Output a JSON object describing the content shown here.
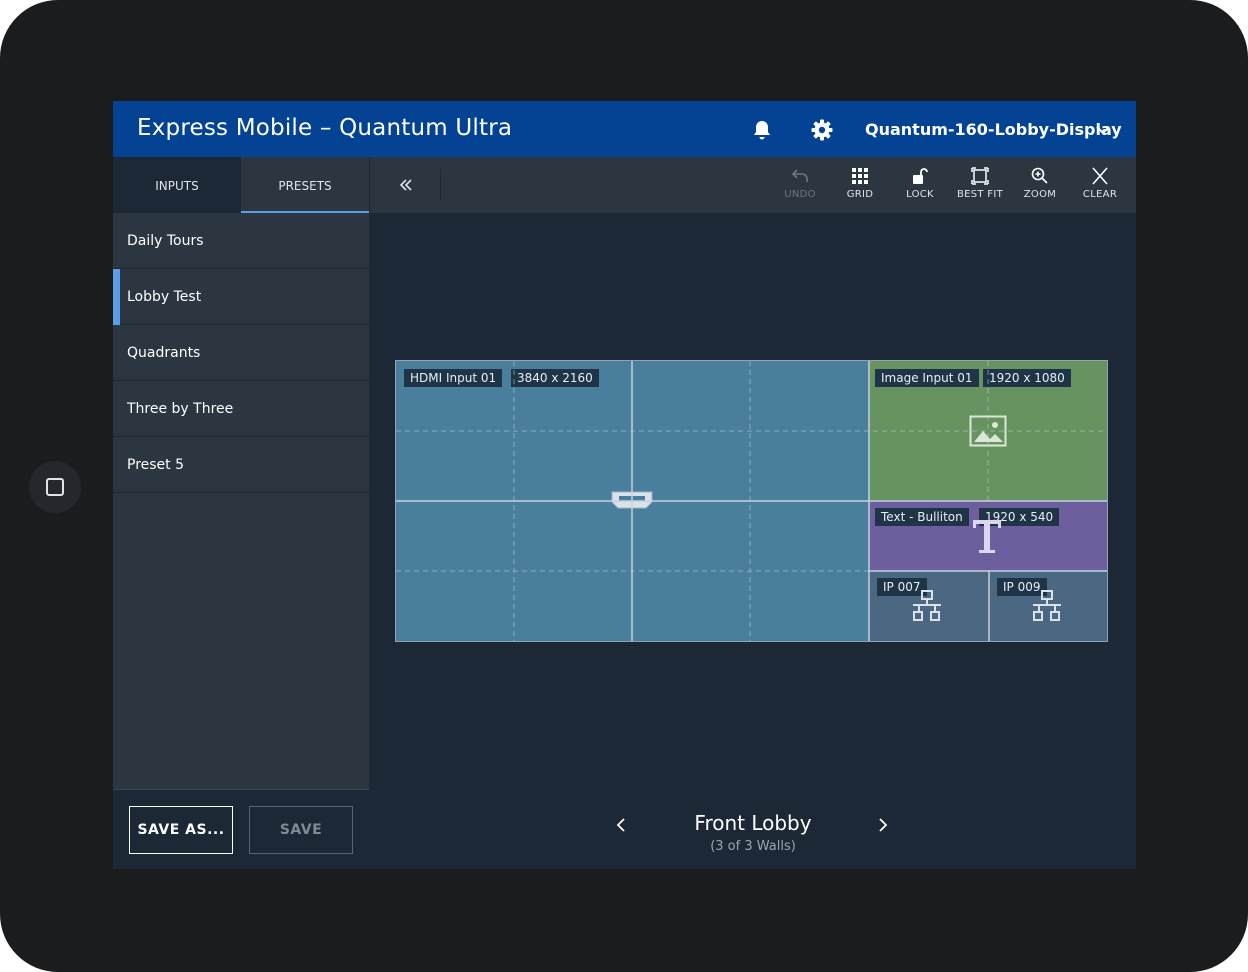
{
  "app": {
    "title": "Express Mobile – Quantum Ultra"
  },
  "header": {
    "display_name": "Quantum-160-Lobby-Display"
  },
  "sidebar": {
    "tabs": [
      {
        "label": "INPUTS"
      },
      {
        "label": "PRESETS"
      }
    ],
    "active_tab": "PRESETS",
    "presets": [
      {
        "label": "Daily Tours"
      },
      {
        "label": "Lobby Test"
      },
      {
        "label": "Quadrants"
      },
      {
        "label": "Three by Three"
      },
      {
        "label": "Preset 5"
      }
    ],
    "active_preset": "Lobby Test",
    "save_as_label": "SAVE AS...",
    "save_label": "SAVE"
  },
  "toolbar": {
    "undo": "UNDO",
    "grid": "GRID",
    "lock": "LOCK",
    "best_fit": "BEST FIT",
    "zoom": "ZOOM",
    "clear": "CLEAR"
  },
  "wall": {
    "windows": {
      "hdmi": {
        "name": "HDMI Input 01",
        "resolution": "3840 x 2160",
        "color": "#4a7e9d"
      },
      "image": {
        "name": "Image Input 01",
        "resolution": "1920 x 1080",
        "color": "#66935f"
      },
      "text": {
        "name": "Text - Bulliton",
        "resolution": "1920 x 540",
        "color": "#6d5e9e"
      },
      "ip007": {
        "name": "IP 007",
        "color": "#4b6781"
      },
      "ip009": {
        "name": "IP 009",
        "color": "#4b6781"
      }
    }
  },
  "footer": {
    "wall_name": "Front Lobby",
    "wall_count": "(3 of 3 Walls)"
  },
  "colors": {
    "header": "#044393",
    "accent": "#5a9ee6",
    "background": "#1d2836",
    "panel": "#2c3641"
  },
  "icons": [
    "bell-icon",
    "gear-icon",
    "chevron-down-icon",
    "double-chevron-left-icon",
    "undo-icon",
    "grid-icon",
    "lock-icon",
    "best-fit-icon",
    "zoom-icon",
    "close-icon",
    "hdmi-icon",
    "image-icon",
    "text-icon",
    "network-icon",
    "chevron-left-icon",
    "chevron-right-icon"
  ]
}
